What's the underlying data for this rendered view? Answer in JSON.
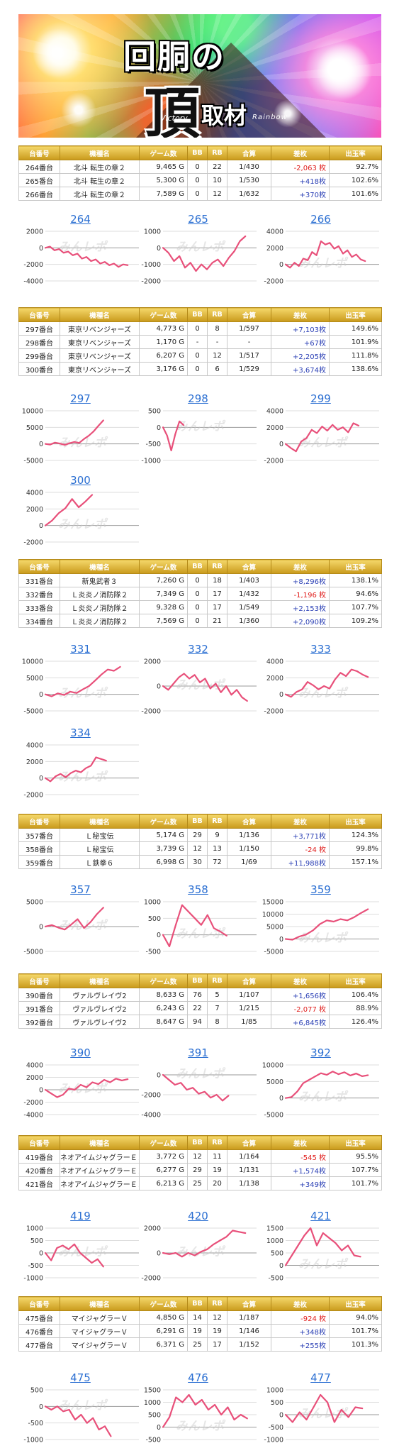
{
  "banner": {
    "title_a": "回胴の",
    "title_b": "頂",
    "title_c": "取材",
    "sub_a": "Victory",
    "sub_b": "Rainbow"
  },
  "columns": [
    "台番号",
    "機種名",
    "ゲーム数",
    "BB",
    "RB",
    "合算",
    "差枚",
    "出玉率"
  ],
  "watermark": "みんレポ",
  "colors": {
    "header_gold": "#d4a72c",
    "line": "#e8507a",
    "negative": "#e0201e",
    "positive": "#2a3fb5",
    "title_blue": "#2b6fd2"
  },
  "sections": [
    {
      "rows": [
        {
          "no": "264番台",
          "name": "北斗 転生の章２",
          "games": "9,465 G",
          "bb": "0",
          "rb": "22",
          "total": "1/430",
          "diff": "-2,063 枚",
          "rate": "92.7%",
          "sign": "neg"
        },
        {
          "no": "265番台",
          "name": "北斗 転生の章２",
          "games": "5,300 G",
          "bb": "0",
          "rb": "10",
          "total": "1/530",
          "diff": "+418枚",
          "rate": "102.6%",
          "sign": "pos"
        },
        {
          "no": "266番台",
          "name": "北斗 転生の章２",
          "games": "7,589 G",
          "bb": "0",
          "rb": "12",
          "total": "1/632",
          "diff": "+370枚",
          "rate": "101.6%",
          "sign": "pos"
        }
      ],
      "charts": [
        {
          "title": "264",
          "ticks": [
            2000,
            0,
            -2000,
            -4000
          ],
          "ylim": [
            -4000,
            2000
          ],
          "end": 0.88,
          "values": [
            0,
            150,
            -300,
            -150,
            -600,
            -450,
            -900,
            -700,
            -1300,
            -1100,
            -1600,
            -1400,
            -1900,
            -1700,
            -2100,
            -1900,
            -2300,
            -2000,
            -2100
          ]
        },
        {
          "title": "265",
          "ticks": [
            1000,
            0,
            -1000,
            -2000
          ],
          "ylim": [
            -2000,
            1000
          ],
          "end": 0.88,
          "values": [
            0,
            -300,
            -800,
            -500,
            -1200,
            -900,
            -1400,
            -1000,
            -1300,
            -900,
            -700,
            -1100,
            -600,
            -200,
            400,
            700
          ]
        },
        {
          "title": "266",
          "ticks": [
            4000,
            2000,
            0,
            -2000
          ],
          "ylim": [
            -2000,
            4000
          ],
          "end": 0.85,
          "values": [
            0,
            -400,
            200,
            -200,
            700,
            500,
            1500,
            1100,
            2800,
            2400,
            2600,
            1900,
            2200,
            1300,
            1700,
            900,
            1200,
            600,
            400
          ]
        }
      ]
    },
    {
      "rows": [
        {
          "no": "297番台",
          "name": "東京リベンジャーズ",
          "games": "4,773 G",
          "bb": "0",
          "rb": "8",
          "total": "1/597",
          "diff": "+7,103枚",
          "rate": "149.6%",
          "sign": "pos"
        },
        {
          "no": "298番台",
          "name": "東京リベンジャーズ",
          "games": "1,170 G",
          "bb": "-",
          "rb": "-",
          "total": "-",
          "diff": "+67枚",
          "rate": "101.9%",
          "sign": "pos"
        },
        {
          "no": "299番台",
          "name": "東京リベンジャーズ",
          "games": "6,207 G",
          "bb": "0",
          "rb": "12",
          "total": "1/517",
          "diff": "+2,205枚",
          "rate": "111.8%",
          "sign": "pos"
        },
        {
          "no": "300番台",
          "name": "東京リベンジャーズ",
          "games": "3,176 G",
          "bb": "0",
          "rb": "6",
          "total": "1/529",
          "diff": "+3,674枚",
          "rate": "138.6%",
          "sign": "pos"
        }
      ],
      "charts": [
        {
          "title": "297",
          "ticks": [
            10000,
            5000,
            0,
            -5000
          ],
          "ylim": [
            -5000,
            10000
          ],
          "end": 0.62,
          "values": [
            0,
            -200,
            400,
            100,
            -300,
            200,
            600,
            300,
            1500,
            2500,
            3800,
            5500,
            7100
          ]
        },
        {
          "title": "298",
          "ticks": [
            500,
            0,
            -500,
            -1000
          ],
          "ylim": [
            -1000,
            500
          ],
          "end": 0.22,
          "values": [
            0,
            -250,
            -700,
            -200,
            180,
            67
          ]
        },
        {
          "title": "299",
          "ticks": [
            4000,
            2000,
            0,
            -2000
          ],
          "ylim": [
            -2000,
            4000
          ],
          "end": 0.78,
          "values": [
            0,
            -500,
            -900,
            300,
            700,
            1700,
            1300,
            2100,
            1600,
            2300,
            1700,
            2000,
            1400,
            2500,
            2200
          ]
        },
        {
          "title": "300",
          "ticks": [
            4000,
            2000,
            0,
            -2000
          ],
          "ylim": [
            -2000,
            4000
          ],
          "end": 0.5,
          "values": [
            0,
            600,
            1500,
            2100,
            3200,
            2200,
            2900,
            3700
          ]
        }
      ]
    },
    {
      "rows": [
        {
          "no": "331番台",
          "name": "新鬼武者３",
          "games": "7,260 G",
          "bb": "0",
          "rb": "18",
          "total": "1/403",
          "diff": "+8,296枚",
          "rate": "138.1%",
          "sign": "pos"
        },
        {
          "no": "332番台",
          "name": "Ｌ炎炎ノ消防隊２",
          "games": "7,349 G",
          "bb": "0",
          "rb": "17",
          "total": "1/432",
          "diff": "-1,196 枚",
          "rate": "94.6%",
          "sign": "neg"
        },
        {
          "no": "333番台",
          "name": "Ｌ炎炎ノ消防隊２",
          "games": "9,328 G",
          "bb": "0",
          "rb": "17",
          "total": "1/549",
          "diff": "+2,153枚",
          "rate": "107.7%",
          "sign": "pos"
        },
        {
          "no": "334番台",
          "name": "Ｌ炎炎ノ消防隊２",
          "games": "7,569 G",
          "bb": "0",
          "rb": "21",
          "total": "1/360",
          "diff": "+2,090枚",
          "rate": "109.2%",
          "sign": "pos"
        }
      ],
      "charts": [
        {
          "title": "331",
          "ticks": [
            10000,
            5000,
            0,
            -5000
          ],
          "ylim": [
            -5000,
            10000
          ],
          "end": 0.8,
          "values": [
            0,
            -600,
            300,
            -200,
            800,
            400,
            1500,
            2500,
            4200,
            6000,
            7500,
            7100,
            8300
          ]
        },
        {
          "title": "332",
          "ticks": [
            2000,
            0,
            -2000
          ],
          "ylim": [
            -2000,
            2000
          ],
          "end": 0.9,
          "values": [
            0,
            -300,
            200,
            700,
            1000,
            600,
            900,
            300,
            600,
            -200,
            200,
            -500,
            0,
            -700,
            -300,
            -900,
            -1200
          ]
        },
        {
          "title": "333",
          "ticks": [
            4000,
            2000,
            0,
            -2000
          ],
          "ylim": [
            -2000,
            4000
          ],
          "end": 0.88,
          "values": [
            0,
            -300,
            300,
            600,
            1500,
            1100,
            600,
            1000,
            700,
            1800,
            2600,
            2200,
            3000,
            2800,
            2400,
            2100
          ]
        },
        {
          "title": "334",
          "ticks": [
            4000,
            2000,
            0,
            -2000
          ],
          "ylim": [
            -2000,
            4000
          ],
          "end": 0.65,
          "values": [
            0,
            -400,
            200,
            500,
            100,
            600,
            900,
            700,
            1200,
            1500,
            2500,
            2300,
            2100
          ]
        }
      ]
    },
    {
      "rows": [
        {
          "no": "357番台",
          "name": "Ｌ秘宝伝",
          "games": "5,174 G",
          "bb": "29",
          "rb": "9",
          "total": "1/136",
          "diff": "+3,771枚",
          "rate": "124.3%",
          "sign": "pos"
        },
        {
          "no": "358番台",
          "name": "Ｌ秘宝伝",
          "games": "3,739 G",
          "bb": "12",
          "rb": "13",
          "total": "1/150",
          "diff": "-24 枚",
          "rate": "99.8%",
          "sign": "neg"
        },
        {
          "no": "359番台",
          "name": "Ｌ鉄拳６",
          "games": "6,998 G",
          "bb": "30",
          "rb": "72",
          "total": "1/69",
          "diff": "+11,988枚",
          "rate": "157.1%",
          "sign": "pos"
        }
      ],
      "charts": [
        {
          "title": "357",
          "ticks": [
            5000,
            0,
            -5000
          ],
          "ylim": [
            -5000,
            5000
          ],
          "end": 0.62,
          "values": [
            0,
            300,
            -200,
            -600,
            400,
            1500,
            -300,
            900,
            2500,
            3800
          ]
        },
        {
          "title": "358",
          "ticks": [
            1000,
            500,
            0,
            -500
          ],
          "ylim": [
            -500,
            1000
          ],
          "end": 0.68,
          "values": [
            0,
            -350,
            300,
            900,
            700,
            500,
            300,
            600,
            200,
            100,
            -24
          ]
        },
        {
          "title": "359",
          "ticks": [
            15000,
            10000,
            5000,
            0,
            -5000
          ],
          "ylim": [
            -5000,
            15000
          ],
          "end": 0.88,
          "values": [
            0,
            -300,
            1000,
            1800,
            3500,
            6000,
            7500,
            7000,
            8000,
            7500,
            8800,
            10500,
            12000
          ]
        }
      ]
    },
    {
      "rows": [
        {
          "no": "390番台",
          "name": "ヴァルヴレイヴ2",
          "games": "8,633 G",
          "bb": "76",
          "rb": "5",
          "total": "1/107",
          "diff": "+1,656枚",
          "rate": "106.4%",
          "sign": "pos"
        },
        {
          "no": "391番台",
          "name": "ヴァルヴレイヴ2",
          "games": "6,243 G",
          "bb": "22",
          "rb": "7",
          "total": "1/215",
          "diff": "-2,077 枚",
          "rate": "88.9%",
          "sign": "neg"
        },
        {
          "no": "392番台",
          "name": "ヴァルヴレイヴ2",
          "games": "8,647 G",
          "bb": "94",
          "rb": "8",
          "total": "1/85",
          "diff": "+6,845枚",
          "rate": "126.4%",
          "sign": "pos"
        }
      ],
      "charts": [
        {
          "title": "390",
          "ticks": [
            4000,
            2000,
            0,
            -2000,
            -4000
          ],
          "ylim": [
            -4000,
            4000
          ],
          "end": 0.88,
          "values": [
            0,
            -600,
            -1200,
            -800,
            200,
            0,
            800,
            400,
            1200,
            900,
            1600,
            1200,
            1800,
            1500,
            1700
          ]
        },
        {
          "title": "391",
          "ticks": [
            0,
            -2000,
            -4000
          ],
          "ylim": [
            -4000,
            1000
          ],
          "end": 0.7,
          "values": [
            0,
            -500,
            -1000,
            -800,
            -1500,
            -1300,
            -1900,
            -1700,
            -2300,
            -2000,
            -2600,
            -2100
          ]
        },
        {
          "title": "392",
          "ticks": [
            10000,
            5000,
            0,
            -5000
          ],
          "ylim": [
            -5000,
            10000
          ],
          "end": 0.88,
          "values": [
            0,
            300,
            2000,
            4500,
            5500,
            6500,
            7500,
            7000,
            8000,
            7200,
            7800,
            6800,
            7400,
            6600,
            6900
          ]
        }
      ]
    },
    {
      "rows": [
        {
          "no": "419番台",
          "name": "ネオアイムジャグラーＥＸ",
          "games": "3,772 G",
          "bb": "12",
          "rb": "11",
          "total": "1/164",
          "diff": "-545 枚",
          "rate": "95.5%",
          "sign": "neg"
        },
        {
          "no": "420番台",
          "name": "ネオアイムジャグラーＥＸ",
          "games": "6,277 G",
          "bb": "29",
          "rb": "19",
          "total": "1/131",
          "diff": "+1,574枚",
          "rate": "107.7%",
          "sign": "pos"
        },
        {
          "no": "421番台",
          "name": "ネオアイムジャグラーＥＸ",
          "games": "6,213 G",
          "bb": "25",
          "rb": "20",
          "total": "1/138",
          "diff": "+349枚",
          "rate": "101.7%",
          "sign": "pos"
        }
      ],
      "charts": [
        {
          "title": "419",
          "ticks": [
            1000,
            500,
            0,
            -500,
            -1000
          ],
          "ylim": [
            -1000,
            1000
          ],
          "end": 0.62,
          "values": [
            0,
            -300,
            200,
            300,
            150,
            350,
            0,
            -200,
            -400,
            -250,
            -550
          ]
        },
        {
          "title": "420",
          "ticks": [
            2000,
            0,
            -2000
          ],
          "ylim": [
            -2000,
            2000
          ],
          "end": 0.88,
          "values": [
            0,
            -100,
            0,
            -300,
            0,
            -200,
            100,
            300,
            700,
            1000,
            1300,
            1800,
            1700,
            1600
          ]
        },
        {
          "title": "421",
          "ticks": [
            1500,
            1000,
            500,
            0,
            -500
          ],
          "ylim": [
            -500,
            1500
          ],
          "end": 0.8,
          "values": [
            0,
            400,
            800,
            1200,
            1500,
            800,
            1300,
            1100,
            900,
            600,
            800,
            400,
            350
          ]
        }
      ]
    },
    {
      "rows": [
        {
          "no": "475番台",
          "name": "マイジャグラーＶ",
          "games": "4,850 G",
          "bb": "14",
          "rb": "12",
          "total": "1/187",
          "diff": "-924 枚",
          "rate": "94.0%",
          "sign": "neg"
        },
        {
          "no": "476番台",
          "name": "マイジャグラーＶ",
          "games": "6,291 G",
          "bb": "19",
          "rb": "19",
          "total": "1/146",
          "diff": "+348枚",
          "rate": "101.7%",
          "sign": "pos"
        },
        {
          "no": "477番台",
          "name": "マイジャグラーＶ",
          "games": "6,371 G",
          "bb": "25",
          "rb": "17",
          "total": "1/152",
          "diff": "+255枚",
          "rate": "101.3%",
          "sign": "pos"
        }
      ],
      "charts": [
        {
          "title": "475",
          "ticks": [
            500,
            0,
            -500,
            -1000
          ],
          "ylim": [
            -1000,
            500
          ],
          "end": 0.7,
          "values": [
            0,
            -100,
            0,
            -150,
            -100,
            -400,
            -250,
            -500,
            -350,
            -700,
            -600,
            -900
          ]
        },
        {
          "title": "476",
          "ticks": [
            1500,
            1000,
            500,
            0,
            -500
          ],
          "ylim": [
            -500,
            1500
          ],
          "end": 0.9,
          "values": [
            0,
            400,
            1200,
            1000,
            1300,
            900,
            1100,
            700,
            900,
            500,
            800,
            300,
            500,
            350
          ]
        },
        {
          "title": "477",
          "ticks": [
            1000,
            500,
            0,
            -500,
            -1000
          ],
          "ylim": [
            -1000,
            1000
          ],
          "end": 0.82,
          "values": [
            0,
            -300,
            100,
            -200,
            300,
            800,
            500,
            -300,
            200,
            -100,
            300,
            255
          ]
        }
      ]
    }
  ]
}
